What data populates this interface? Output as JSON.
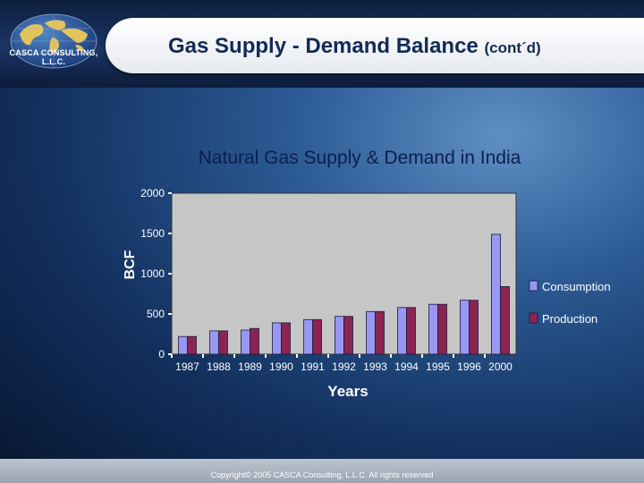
{
  "header": {
    "logo_text": "CASCA CONSULTING, L.L.C.",
    "title": "Gas Supply - Demand Balance",
    "title_suffix": "(cont´d)"
  },
  "footer": {
    "copyright": "Copyright© 2005 CASCA Consulting, L.L.C. All rights reserved"
  },
  "colors": {
    "consumption": "#9898f0",
    "production": "#8c2452",
    "plot_background": "#c6c6c6",
    "title": "#0b1f4d"
  },
  "chart_data": {
    "type": "bar",
    "title": "Natural Gas Supply & Demand in India",
    "xlabel": "Years",
    "ylabel": "BCF",
    "ylim": [
      0,
      2000
    ],
    "yticks": [
      0,
      500,
      1000,
      1500,
      2000
    ],
    "ytick_labels": [
      "0",
      "500",
      "1000",
      "1500",
      "2000"
    ],
    "categories": [
      "1987",
      "1988",
      "1989",
      "1990",
      "1991",
      "1992",
      "1993",
      "1994",
      "1995",
      "1996",
      "2000"
    ],
    "series": [
      {
        "name": "Consumption",
        "values": [
          220,
          290,
          300,
          390,
          430,
          470,
          530,
          580,
          620,
          670,
          1490
        ]
      },
      {
        "name": "Production",
        "values": [
          220,
          290,
          320,
          390,
          430,
          470,
          530,
          580,
          620,
          670,
          840
        ]
      }
    ],
    "legend_position": "right",
    "grid": false
  }
}
